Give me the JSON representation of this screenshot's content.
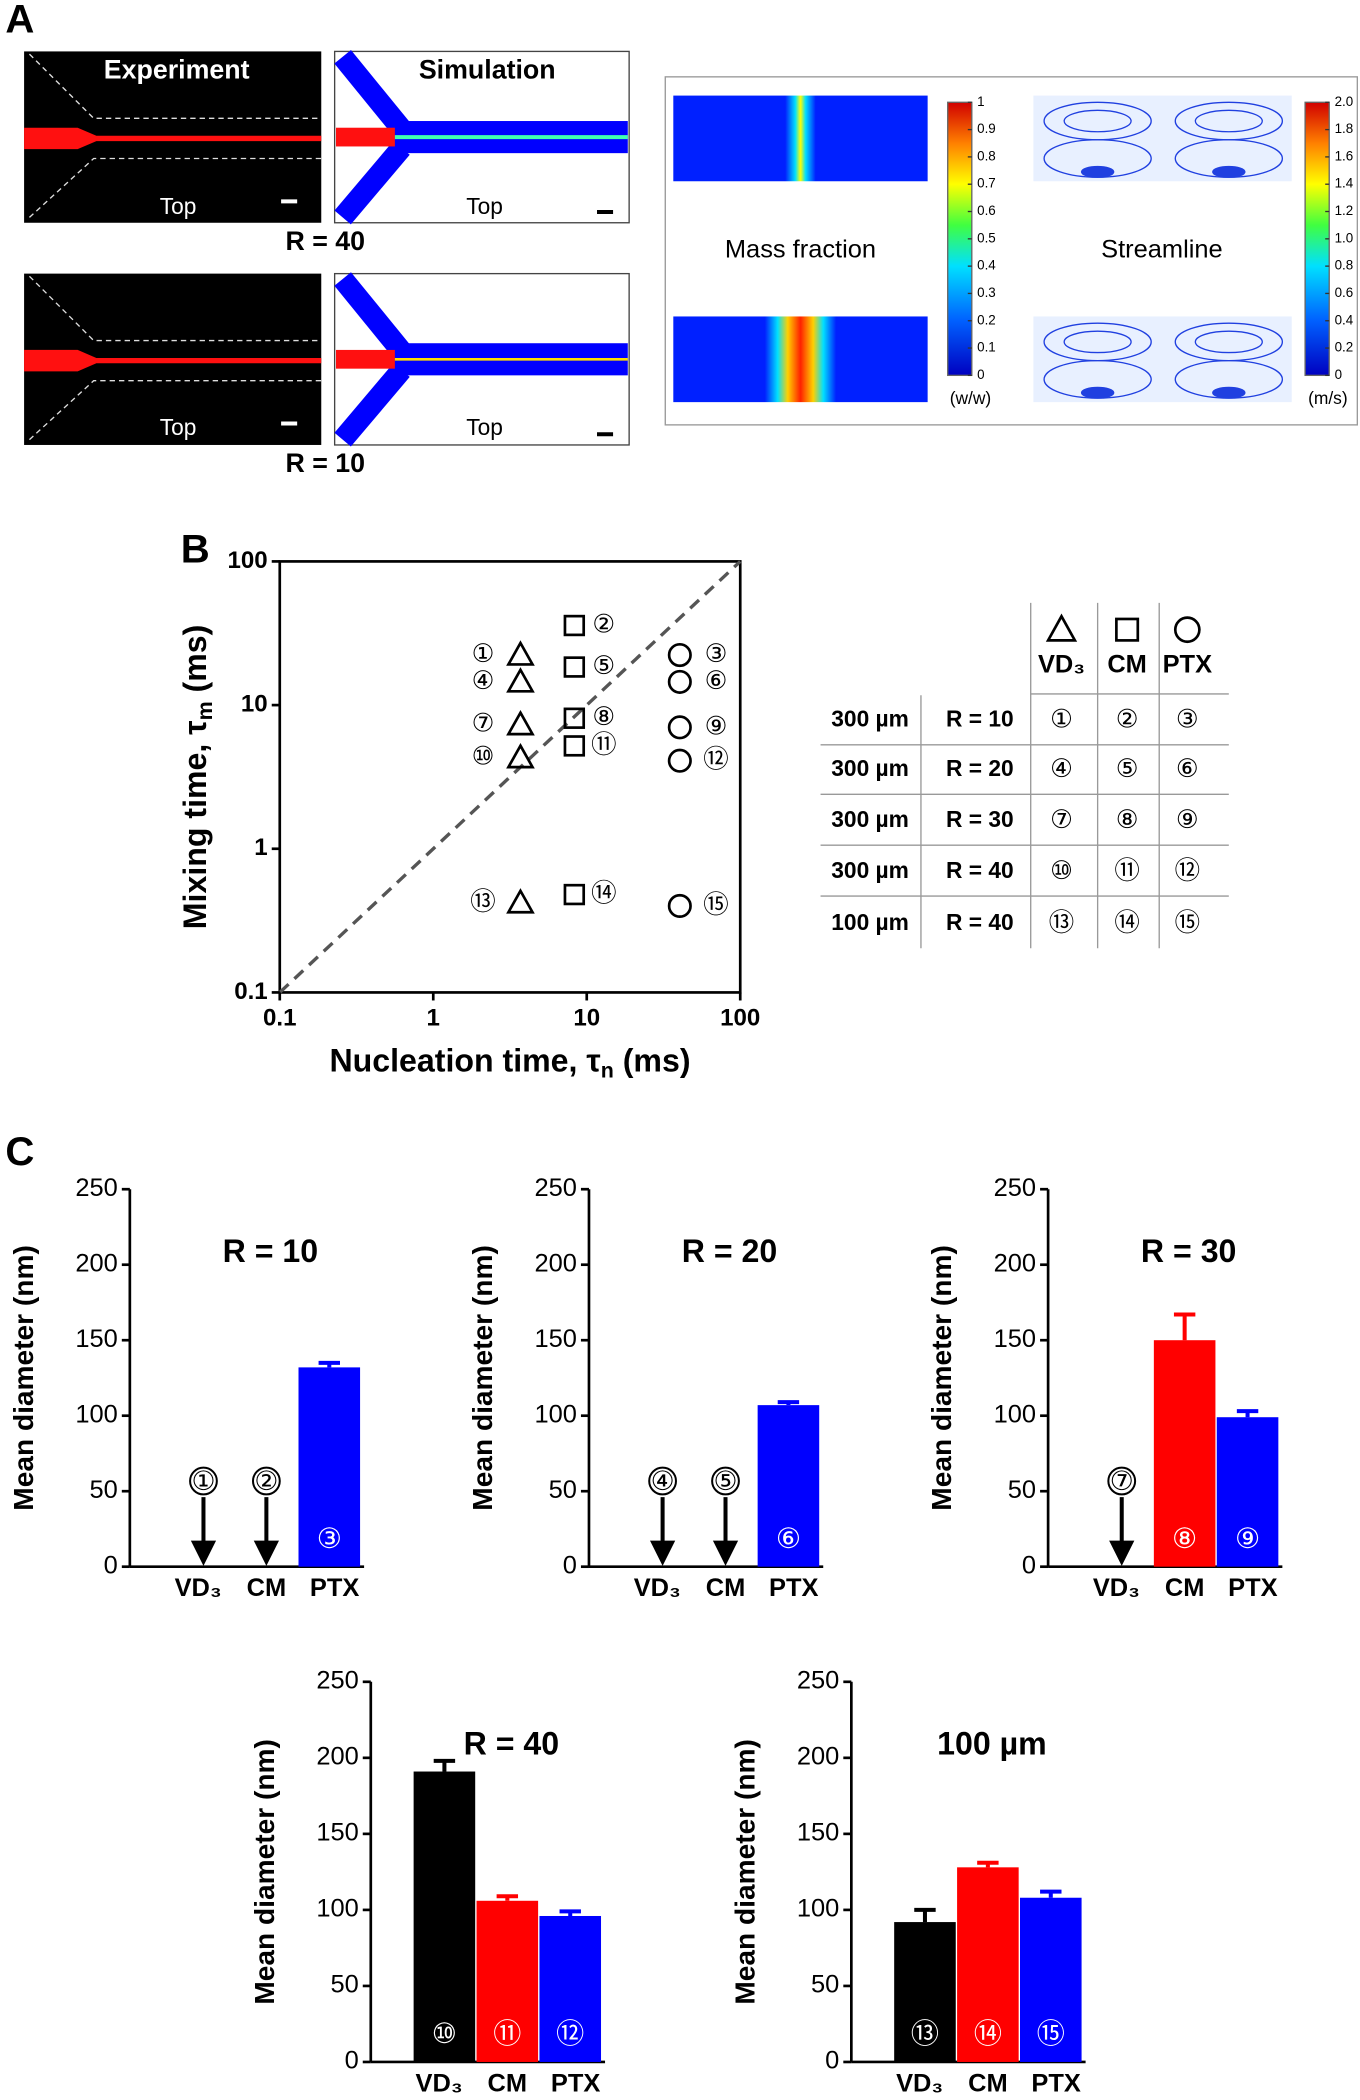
{
  "panel_labels": [
    "A",
    "B",
    "C"
  ],
  "panel_a": {
    "experiment": "Experiment",
    "simulation": "Simulation",
    "top_labels": [
      "Top",
      "Top",
      "Top",
      "Top"
    ],
    "r_labels": [
      "R = 40",
      "R = 10"
    ],
    "colorbars": [
      {
        "label": "Mass fraction",
        "unit": "(w/w)",
        "lim": [
          0,
          1
        ],
        "ticks": [
          0,
          0.1,
          0.2,
          0.3,
          0.4,
          0.5,
          0.6,
          0.7,
          0.8,
          0.9,
          1
        ]
      },
      {
        "label": "Streamline",
        "unit": "(m/s)",
        "lim": [
          0,
          2
        ],
        "ticks": [
          0,
          0.2,
          0.4,
          0.6,
          0.8,
          {
            "value": 1,
            "label": "1.0"
          },
          1.2,
          1.4,
          1.6,
          1.8,
          {
            "value": 2,
            "label": "2.0"
          }
        ]
      }
    ]
  },
  "table": {
    "rows": [
      [
        "300 µm",
        "R = 10",
        "①",
        "②",
        "③"
      ],
      [
        "300 µm",
        "R = 20",
        "④",
        "⑤",
        "⑥"
      ],
      [
        "300 µm",
        "R = 30",
        "⑦",
        "⑧",
        "⑨"
      ],
      [
        "300 µm",
        "R = 40",
        "⑩",
        "⑪",
        "⑫"
      ],
      [
        "100 µm",
        "R = 40",
        "⑬",
        "⑭",
        "⑮"
      ]
    ]
  },
  "chart_data": [
    {
      "type": "scatter",
      "xlabel": [
        "Nucleation time, τ",
        "n",
        " (ms)"
      ],
      "ylabel": [
        "Mixing time, τ",
        "m",
        " (ms)"
      ],
      "xscale": "log",
      "yscale": "log",
      "xlim": [
        0.1,
        100
      ],
      "ylim": [
        0.1,
        100
      ],
      "xticks": [
        0.1,
        1,
        10,
        100
      ],
      "yticks": [
        0.1,
        1,
        10,
        100
      ],
      "series": [
        {
          "name": "VD₃",
          "marker": "triangle",
          "color": "#000000",
          "x": [
            3.7,
            3.7,
            3.7,
            3.7,
            3.7
          ],
          "y": [
            22.3,
            14.5,
            7.3,
            4.3,
            0.42
          ],
          "labels": [
            "①",
            "④",
            "⑦",
            "⑩",
            "⑬"
          ]
        },
        {
          "name": "CM",
          "marker": "square",
          "color": "#000000",
          "x": [
            8.3,
            8.3,
            8.3,
            8.3,
            8.3
          ],
          "y": [
            35.8,
            18.4,
            8.1,
            5.2,
            0.48
          ],
          "labels": [
            "②",
            "⑤",
            "⑧",
            "⑪",
            "⑭"
          ]
        },
        {
          "name": "PTX",
          "marker": "circle",
          "color": "#000000",
          "x": [
            40.4,
            40.4,
            40.4,
            40.4,
            40.4
          ],
          "y": [
            22.3,
            14.5,
            7.0,
            4.1,
            0.4
          ],
          "labels": [
            "③",
            "⑥",
            "⑨",
            "⑫",
            "⑮"
          ]
        }
      ]
    },
    {
      "type": "bar",
      "title": "R = 10",
      "ylabel": "Mean diameter (nm)",
      "categories": [
        "VD₃",
        "CM",
        "PTX"
      ],
      "values": [
        null,
        null,
        132
      ],
      "errors": [
        null,
        null,
        3
      ],
      "colors": [
        "#000000",
        "#ff0000",
        "#0000ff"
      ],
      "bar_labels": [
        "①",
        "②",
        "③"
      ],
      "ylim": [
        0,
        250
      ],
      "yticks": [
        0,
        50,
        100,
        150,
        200,
        250
      ]
    },
    {
      "type": "bar",
      "title": "R = 20",
      "ylabel": "Mean diameter (nm)",
      "categories": [
        "VD₃",
        "CM",
        "PTX"
      ],
      "values": [
        null,
        null,
        107
      ],
      "errors": [
        null,
        null,
        2
      ],
      "colors": [
        "#000000",
        "#ff0000",
        "#0000ff"
      ],
      "bar_labels": [
        "④",
        "⑤",
        "⑥"
      ],
      "ylim": [
        0,
        250
      ],
      "yticks": [
        0,
        50,
        100,
        150,
        200,
        250
      ]
    },
    {
      "type": "bar",
      "title": "R = 30",
      "ylabel": "Mean diameter (nm)",
      "categories": [
        "VD₃",
        "CM",
        "PTX"
      ],
      "values": [
        null,
        150,
        99
      ],
      "errors": [
        null,
        17,
        4
      ],
      "colors": [
        "#000000",
        "#ff0000",
        "#0000ff"
      ],
      "bar_labels": [
        "⑦",
        "⑧",
        "⑨"
      ],
      "ylim": [
        0,
        250
      ],
      "yticks": [
        0,
        50,
        100,
        150,
        200,
        250
      ]
    },
    {
      "type": "bar",
      "title": "R = 40",
      "ylabel": "Mean diameter (nm)",
      "categories": [
        "VD₃",
        "CM",
        "PTX"
      ],
      "values": [
        191,
        106,
        96
      ],
      "errors": [
        7,
        3,
        3
      ],
      "colors": [
        "#000000",
        "#ff0000",
        "#0000ff"
      ],
      "bar_labels": [
        "⑩",
        "⑪",
        "⑫"
      ],
      "ylim": [
        0,
        250
      ],
      "yticks": [
        0,
        50,
        100,
        150,
        200,
        250
      ]
    },
    {
      "type": "bar",
      "title": "100 µm",
      "ylabel": "Mean diameter (nm)",
      "categories": [
        "VD₃",
        "CM",
        "PTX"
      ],
      "values": [
        92,
        128,
        108
      ],
      "errors": [
        8,
        3,
        4
      ],
      "colors": [
        "#000000",
        "#ff0000",
        "#0000ff"
      ],
      "bar_labels": [
        "⑬",
        "⑭",
        "⑮"
      ],
      "ylim": [
        0,
        250
      ],
      "yticks": [
        0,
        50,
        100,
        150,
        200,
        250
      ]
    }
  ]
}
